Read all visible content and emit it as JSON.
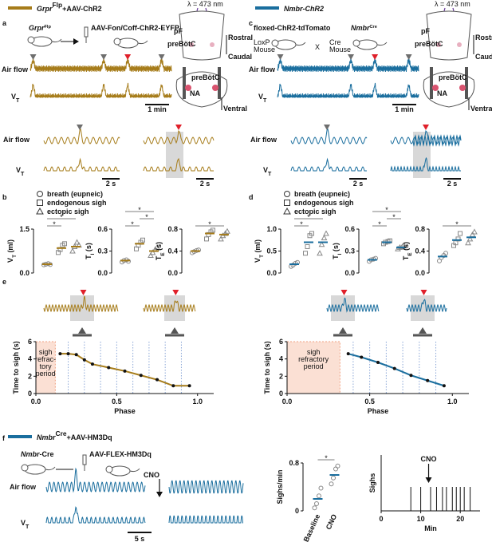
{
  "figure": {
    "a": {
      "label": "a",
      "title": [
        "Grpr",
        "Flp",
        "+AAV-ChR2"
      ],
      "mouse": [
        "Grpr",
        "Flp"
      ],
      "virus": "AAV-Fon/Coff-ChR2-EYFP",
      "airflow": "Air flow",
      "vt": [
        "V",
        "T"
      ],
      "scale": "1 min",
      "zoom_airflow": "Air flow",
      "zoom_vt": [
        "V",
        "T"
      ],
      "zoom_scale": [
        "2 s",
        "2 s"
      ],
      "brain": {
        "laser": "λ = 473 nm",
        "pf": "pF",
        "prebotc_top": "preBötC",
        "rostral": "Rostral",
        "caudal": "Caudal",
        "prebotc": "preBötC",
        "na": "NA",
        "ventral": "Ventral"
      }
    },
    "c": {
      "label": "c",
      "title": "Nmbr-ChR2",
      "left_mouse": "floxed-ChR2-tdTomato",
      "loxp": [
        "LoxP",
        "Mouse"
      ],
      "cross": "X",
      "cre": [
        "Cre",
        "Mouse"
      ],
      "right_mouse": [
        "Nmbr",
        "Cre"
      ],
      "airflow": "Air flow",
      "vt": [
        "V",
        "T"
      ],
      "scale": "1 min",
      "zoom_airflow": "Air flow",
      "zoom_vt": [
        "V",
        "T"
      ],
      "zoom_scale": [
        "2 s",
        "2 s"
      ],
      "brain": {
        "laser": "λ = 473 nm",
        "pf": "pF",
        "prebotc_top": "preBötC",
        "rostral": "Rostral",
        "caudal": "Caudal",
        "prebotc": "preBötC",
        "na": "NA",
        "ventral": "Ventral"
      }
    },
    "b": {
      "label": "b",
      "legend": [
        "breath (eupneic)",
        "endogenous sigh",
        "ectopic sigh"
      ]
    },
    "d": {
      "label": "d",
      "legend": [
        "breath (eupneic)",
        "endogenous sigh",
        "ectopic sigh"
      ]
    },
    "e": {
      "label": "e"
    },
    "f": {
      "label": "f",
      "title": [
        "Nmbr",
        "Cre",
        "+AAV-HM3Dq"
      ],
      "mouse": [
        "Nmbr",
        "-Cre"
      ],
      "virus": "AAV-FLEX-HM3Dq",
      "cno": "CNO",
      "airflow": "Air flow",
      "vt": [
        "V",
        "T"
      ],
      "scale": "5 s"
    }
  },
  "chart_data": [
    {
      "type": "scatter",
      "color": "#a67c1a",
      "ylabel": [
        "V",
        "T",
        " (ml)"
      ],
      "ylim": [
        0,
        1.5
      ],
      "yticks": [
        {
          "value": 0,
          "label": "0.0"
        },
        1.5
      ],
      "values": [
        0.3,
        0.85,
        0.9
      ],
      "points": [
        [
          0.28,
          0.3,
          0.32,
          0.29
        ],
        [
          0.7,
          0.8,
          0.95,
          1.0
        ],
        [
          0.75,
          0.9,
          1.05,
          0.95
        ]
      ],
      "significance": [
        "*",
        "*"
      ]
    },
    {
      "type": "scatter",
      "color": "#a67c1a",
      "ylabel": [
        "T",
        "I",
        " (s)"
      ],
      "ylim": [
        0,
        0.6
      ],
      "yticks": [
        {
          "value": 0,
          "label": "0.0"
        },
        0.3,
        0.6
      ],
      "values": [
        0.17,
        0.4,
        0.3
      ],
      "points": [
        [
          0.15,
          0.17,
          0.18,
          0.16
        ],
        [
          0.33,
          0.38,
          0.42,
          0.45
        ],
        [
          0.24,
          0.28,
          0.32,
          0.35
        ]
      ],
      "significance": [
        "*",
        "*",
        "*"
      ]
    },
    {
      "type": "scatter",
      "color": "#a67c1a",
      "ylabel": [
        "T",
        "E",
        " (s)"
      ],
      "ylim": [
        0,
        0.8
      ],
      "yticks": [
        {
          "value": 0,
          "label": "0.0"
        },
        0.4,
        0.8
      ],
      "values": [
        0.4,
        0.72,
        0.7
      ],
      "points": [
        [
          0.37,
          0.39,
          0.41,
          0.42
        ],
        [
          0.62,
          0.7,
          0.75,
          0.78
        ],
        [
          0.62,
          0.68,
          0.72,
          0.76
        ]
      ],
      "significance": [
        "*"
      ]
    },
    {
      "type": "scatter",
      "color": "#1a6e9e",
      "ylabel": [
        "V",
        "T",
        " (ml)"
      ],
      "ylim": [
        0,
        1.0
      ],
      "yticks": [
        {
          "value": 0,
          "label": "0.0"
        },
        0.5,
        {
          "value": 1,
          "label": "1.0"
        }
      ],
      "values": [
        0.2,
        0.7,
        0.7
      ],
      "points": [
        [
          0.15,
          0.18,
          0.22,
          0.24
        ],
        [
          0.45,
          0.6,
          0.85,
          0.9
        ],
        [
          0.45,
          0.65,
          0.8,
          0.9
        ]
      ],
      "significance": [
        "*",
        "*"
      ]
    },
    {
      "type": "scatter",
      "color": "#1a6e9e",
      "ylabel": [
        "T",
        "I",
        " (s)"
      ],
      "ylim": [
        0,
        0.6
      ],
      "yticks": [
        {
          "value": 0,
          "label": "0.0"
        },
        0.3,
        0.6
      ],
      "values": [
        0.18,
        0.42,
        0.35
      ],
      "points": [
        [
          0.16,
          0.18,
          0.19,
          0.2
        ],
        [
          0.4,
          0.42,
          0.43,
          0.44
        ],
        [
          0.33,
          0.35,
          0.36,
          0.37
        ]
      ],
      "significance": [
        "*",
        "*",
        "*"
      ]
    },
    {
      "type": "scatter",
      "color": "#1a6e9e",
      "ylabel": [
        "T",
        "E",
        " (s)"
      ],
      "ylim": [
        0,
        0.8
      ],
      "yticks": [
        {
          "value": 0,
          "label": "0.0"
        },
        0.4,
        0.8
      ],
      "values": [
        0.3,
        0.6,
        0.65
      ],
      "points": [
        [
          0.22,
          0.28,
          0.32,
          0.36
        ],
        [
          0.5,
          0.55,
          0.62,
          0.72
        ],
        [
          0.55,
          0.62,
          0.7,
          0.75
        ]
      ],
      "significance": [
        "*"
      ]
    },
    {
      "type": "line",
      "color": "#a67c1a",
      "xlabel": "Phase",
      "ylabel": "Time to sigh (s)",
      "xlim": [
        0,
        1.1
      ],
      "ylim": [
        0,
        6
      ],
      "xticks": [
        {
          "value": 0,
          "label": "0.0"
        },
        0.5,
        {
          "value": 1,
          "label": "1.0"
        }
      ],
      "yticks": [
        0,
        2,
        4,
        6
      ],
      "x": [
        0.15,
        0.2,
        0.25,
        0.3,
        0.35,
        0.45,
        0.55,
        0.65,
        0.75,
        0.85,
        0.95
      ],
      "y": [
        4.6,
        4.6,
        4.5,
        3.9,
        3.4,
        3.0,
        2.6,
        2.1,
        1.6,
        0.9,
        0.9
      ],
      "refractory": [
        0,
        0.12
      ],
      "refractory_text": [
        "sigh",
        "refrac-",
        "tory",
        "period"
      ],
      "dividers": [
        0.2,
        0.3,
        0.4,
        0.5,
        0.6,
        0.7,
        0.8,
        0.9
      ]
    },
    {
      "type": "line",
      "color": "#1a6e9e",
      "xlabel": "Phase",
      "ylabel": "Time to sigh (s)",
      "xlim": [
        0,
        1.1
      ],
      "ylim": [
        0,
        6
      ],
      "xticks": [
        {
          "value": 0,
          "label": "0.0"
        },
        0.5,
        {
          "value": 1,
          "label": "1.0"
        }
      ],
      "yticks": [
        0,
        2,
        4,
        6
      ],
      "x": [
        0.37,
        0.45,
        0.55,
        0.65,
        0.75,
        0.85,
        0.95
      ],
      "y": [
        4.6,
        4.2,
        3.6,
        2.9,
        2.1,
        1.5,
        0.9
      ],
      "refractory": [
        0,
        0.32
      ],
      "refractory_text": [
        "sigh",
        "refractory",
        "period"
      ],
      "dividers": [
        0.4,
        0.5,
        0.6,
        0.7,
        0.8,
        0.9
      ]
    },
    {
      "type": "scatter",
      "color": "#1a6e9e",
      "ylabel": "Sighs/min",
      "categories": [
        "Baseline",
        "CNO"
      ],
      "ylim": [
        0,
        0.8
      ],
      "yticks": [
        0,
        0.8
      ],
      "values": [
        0.2,
        0.6
      ],
      "points": [
        [
          0.05,
          0.12,
          0.25,
          0.38
        ],
        [
          0.45,
          0.55,
          0.7,
          0.75
        ]
      ],
      "significance": [
        "*"
      ]
    },
    {
      "type": "raster",
      "color": "#111111",
      "ylabel": "Sighs",
      "xlabel": "Min",
      "xlim": [
        0,
        25
      ],
      "xticks": [
        0,
        10,
        20
      ],
      "x": [
        0,
        7.5,
        10,
        12.5,
        14,
        15.5,
        16.5,
        18,
        19,
        20,
        21,
        22.5
      ],
      "annotation": "CNO",
      "cno": 12
    }
  ]
}
